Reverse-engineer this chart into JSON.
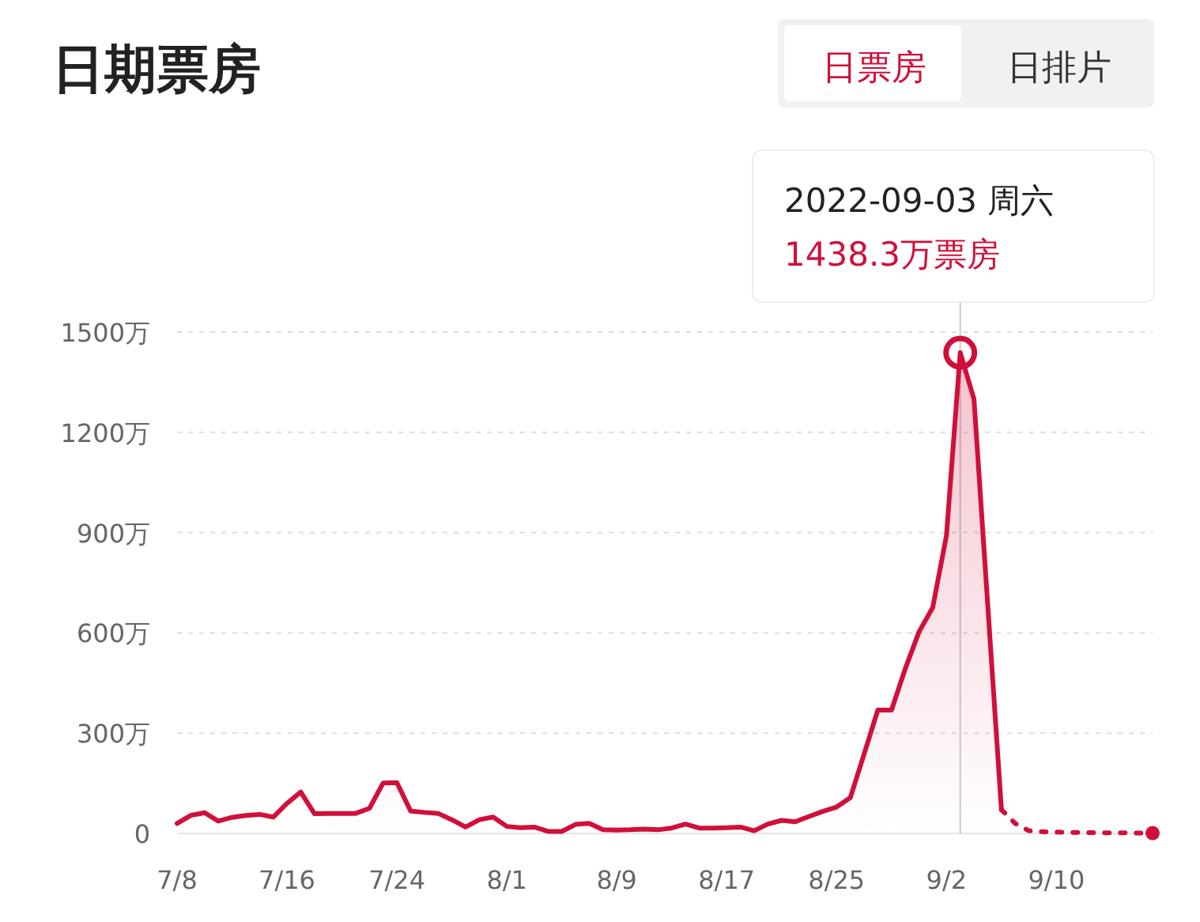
{
  "chart_data": {
    "type": "area",
    "title": "日期票房",
    "annotations": [
      "日票房",
      "日排片",
      "2022-09-03 周六",
      "1438.3万票房"
    ],
    "series": [
      {
        "color": "#d0103a",
        "marker": "none",
        "line_style": "solid",
        "x": [
          "2022-07-08",
          "2022-07-09",
          "2022-07-10",
          "2022-07-11",
          "2022-07-12",
          "2022-07-13",
          "2022-07-14",
          "2022-07-15",
          "2022-07-16",
          "2022-07-17",
          "2022-07-18",
          "2022-07-19",
          "2022-07-20",
          "2022-07-21",
          "2022-07-22",
          "2022-07-23",
          "2022-07-24",
          "2022-07-25",
          "2022-07-26",
          "2022-07-27",
          "2022-07-28",
          "2022-07-29",
          "2022-07-30",
          "2022-07-31",
          "2022-08-01",
          "2022-08-02",
          "2022-08-03",
          "2022-08-04",
          "2022-08-05",
          "2022-08-06",
          "2022-08-07",
          "2022-08-08",
          "2022-08-09",
          "2022-08-10",
          "2022-08-11",
          "2022-08-12",
          "2022-08-13",
          "2022-08-14",
          "2022-08-15",
          "2022-08-16",
          "2022-08-17",
          "2022-08-18",
          "2022-08-19",
          "2022-08-20",
          "2022-08-21",
          "2022-08-22",
          "2022-08-23",
          "2022-08-24",
          "2022-08-25",
          "2022-08-26",
          "2022-08-27",
          "2022-08-28",
          "2022-08-29",
          "2022-08-30",
          "2022-08-31",
          "2022-09-01",
          "2022-09-02",
          "2022-09-03",
          "2022-09-04",
          "2022-09-06"
        ],
        "values": [
          30,
          54,
          62,
          37,
          48,
          54,
          57,
          49,
          90,
          124,
          59,
          60,
          60,
          60,
          75,
          151,
          152,
          67,
          63,
          60,
          41,
          19,
          41,
          49,
          21,
          17,
          19,
          6,
          6,
          27,
          30,
          11,
          10,
          11,
          13,
          11,
          16,
          28,
          16,
          16,
          17,
          19,
          8,
          28,
          39,
          35,
          51,
          66,
          79,
          107,
          237,
          369,
          369,
          493,
          603,
          676,
          892,
          1438.3,
          1300,
          71
        ]
      },
      {
        "type": "line",
        "color": "#d0103a",
        "marker": "none",
        "line_style": "dotted",
        "x": [
          "2022-09-06",
          "2022-09-07",
          "2022-09-08",
          "2022-09-09",
          "2022-09-10",
          "2022-09-11",
          "2022-09-12",
          "2022-09-13",
          "2022-09-14",
          "2022-09-15",
          "2022-09-16",
          "2022-09-17"
        ],
        "values": [
          71,
          30,
          8,
          5,
          4,
          3,
          3,
          2,
          2,
          2,
          1,
          1
        ]
      },
      {
        "type": "scatter",
        "color": "#d0103a",
        "marker": "circle",
        "x": [
          "2022-09-17"
        ],
        "values": [
          1
        ]
      }
    ],
    "xlim": [
      "2022-07-08",
      "2022-09-17"
    ],
    "xticks": [
      {
        "value": "2022-07-08",
        "label": "7/8"
      },
      {
        "value": "2022-07-16",
        "label": "7/16"
      },
      {
        "value": "2022-07-24",
        "label": "7/24"
      },
      {
        "value": "2022-08-01",
        "label": "8/1"
      },
      {
        "value": "2022-08-09",
        "label": "8/9"
      },
      {
        "value": "2022-08-17",
        "label": "8/17"
      },
      {
        "value": "2022-08-25",
        "label": "8/25"
      },
      {
        "value": "2022-09-02",
        "label": "9/2"
      },
      {
        "value": "2022-09-10",
        "label": "9/10"
      }
    ],
    "ylim": [
      0,
      1500
    ],
    "yticks": [
      0,
      {
        "value": 300,
        "label": "300万"
      },
      {
        "value": 600,
        "label": "600万"
      },
      {
        "value": 900,
        "label": "900万"
      },
      {
        "value": 1200,
        "label": "1200万"
      },
      {
        "value": 1500,
        "label": "1500万"
      }
    ],
    "ref_lines": [
      {
        "axis": "x",
        "value": "2022-09-03",
        "color": "#cccccc"
      }
    ],
    "grid": "y"
  }
}
